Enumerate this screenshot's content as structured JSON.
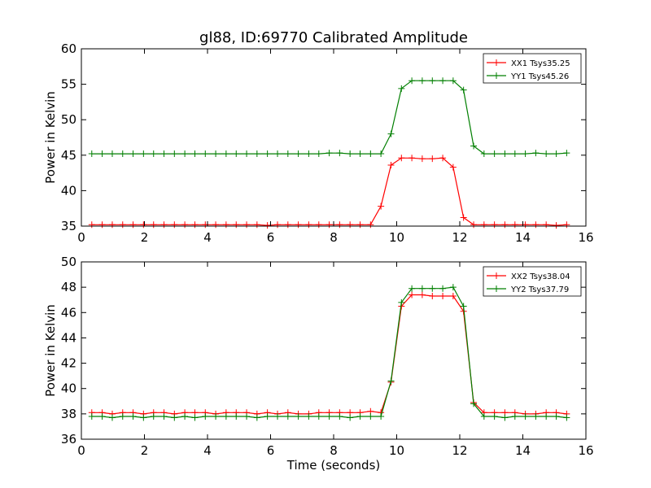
{
  "title": "gl88, ID:69770 Calibrated Amplitude",
  "chart_data": [
    {
      "type": "line",
      "xlabel": "",
      "ylabel": "Power in Kelvin",
      "xlim": [
        0,
        16
      ],
      "ylim": [
        35,
        60
      ],
      "xticks": [
        0,
        2,
        4,
        6,
        8,
        10,
        12,
        14,
        16
      ],
      "yticks": [
        35,
        40,
        45,
        50,
        55,
        60
      ],
      "grid": false,
      "legend": "top-right",
      "x": [
        0.33,
        0.66,
        0.98,
        1.31,
        1.64,
        1.97,
        2.29,
        2.62,
        2.95,
        3.28,
        3.6,
        3.93,
        4.26,
        4.59,
        4.91,
        5.24,
        5.57,
        5.9,
        6.22,
        6.55,
        6.88,
        7.21,
        7.53,
        7.86,
        8.19,
        8.52,
        8.84,
        9.17,
        9.5,
        9.82,
        10.15,
        10.48,
        10.81,
        11.13,
        11.46,
        11.79,
        12.12,
        12.44,
        12.77,
        13.1,
        13.43,
        13.75,
        14.08,
        14.41,
        14.74,
        15.06,
        15.39
      ],
      "series": [
        {
          "name": "XX1 Tsys35.25",
          "color": "#ff0000",
          "values": [
            35.2,
            35.2,
            35.2,
            35.2,
            35.2,
            35.2,
            35.2,
            35.2,
            35.2,
            35.2,
            35.2,
            35.2,
            35.2,
            35.2,
            35.2,
            35.2,
            35.2,
            35.1,
            35.2,
            35.2,
            35.2,
            35.2,
            35.2,
            35.2,
            35.2,
            35.2,
            35.2,
            35.2,
            37.8,
            43.6,
            44.6,
            44.6,
            44.5,
            44.5,
            44.6,
            43.3,
            36.2,
            35.2,
            35.2,
            35.2,
            35.2,
            35.2,
            35.2,
            35.2,
            35.2,
            35.1,
            35.2
          ]
        },
        {
          "name": "YY1 Tsys45.26",
          "color": "#007f00",
          "values": [
            45.2,
            45.2,
            45.2,
            45.2,
            45.2,
            45.2,
            45.2,
            45.2,
            45.2,
            45.2,
            45.2,
            45.2,
            45.2,
            45.2,
            45.2,
            45.2,
            45.2,
            45.2,
            45.2,
            45.2,
            45.2,
            45.2,
            45.2,
            45.3,
            45.3,
            45.2,
            45.2,
            45.2,
            45.2,
            48.0,
            54.4,
            55.5,
            55.5,
            55.5,
            55.5,
            55.5,
            54.2,
            46.3,
            45.2,
            45.2,
            45.2,
            45.2,
            45.2,
            45.3,
            45.2,
            45.2,
            45.3
          ]
        }
      ]
    },
    {
      "type": "line",
      "xlabel": "Time (seconds)",
      "ylabel": "Power in Kelvin",
      "xlim": [
        0,
        16
      ],
      "ylim": [
        36,
        50
      ],
      "xticks": [
        0,
        2,
        4,
        6,
        8,
        10,
        12,
        14,
        16
      ],
      "yticks": [
        36,
        38,
        40,
        42,
        44,
        46,
        48,
        50
      ],
      "grid": false,
      "legend": "top-right",
      "x": [
        0.33,
        0.66,
        0.98,
        1.31,
        1.64,
        1.97,
        2.29,
        2.62,
        2.95,
        3.28,
        3.6,
        3.93,
        4.26,
        4.59,
        4.91,
        5.24,
        5.57,
        5.9,
        6.22,
        6.55,
        6.88,
        7.21,
        7.53,
        7.86,
        8.19,
        8.52,
        8.84,
        9.17,
        9.5,
        9.82,
        10.15,
        10.48,
        10.81,
        11.13,
        11.46,
        11.79,
        12.12,
        12.44,
        12.77,
        13.1,
        13.43,
        13.75,
        14.08,
        14.41,
        14.74,
        15.06,
        15.39
      ],
      "series": [
        {
          "name": "XX2 Tsys38.04",
          "color": "#ff0000",
          "values": [
            38.1,
            38.1,
            38.0,
            38.1,
            38.1,
            38.0,
            38.1,
            38.1,
            38.0,
            38.1,
            38.1,
            38.1,
            38.0,
            38.1,
            38.1,
            38.1,
            38.0,
            38.1,
            38.0,
            38.1,
            38.0,
            38.0,
            38.1,
            38.1,
            38.1,
            38.1,
            38.1,
            38.2,
            38.1,
            40.5,
            46.5,
            47.4,
            47.4,
            47.3,
            47.3,
            47.3,
            46.1,
            38.9,
            38.1,
            38.1,
            38.1,
            38.1,
            38.0,
            38.0,
            38.1,
            38.1,
            38.0
          ]
        },
        {
          "name": "YY2 Tsys37.79",
          "color": "#007f00",
          "values": [
            37.8,
            37.8,
            37.7,
            37.8,
            37.8,
            37.7,
            37.8,
            37.8,
            37.7,
            37.8,
            37.7,
            37.8,
            37.8,
            37.8,
            37.8,
            37.8,
            37.7,
            37.8,
            37.8,
            37.8,
            37.8,
            37.8,
            37.8,
            37.8,
            37.8,
            37.7,
            37.8,
            37.8,
            37.8,
            40.6,
            46.8,
            47.9,
            47.9,
            47.9,
            47.9,
            48.0,
            46.5,
            38.8,
            37.8,
            37.8,
            37.7,
            37.8,
            37.8,
            37.8,
            37.8,
            37.8,
            37.7
          ]
        }
      ]
    }
  ]
}
